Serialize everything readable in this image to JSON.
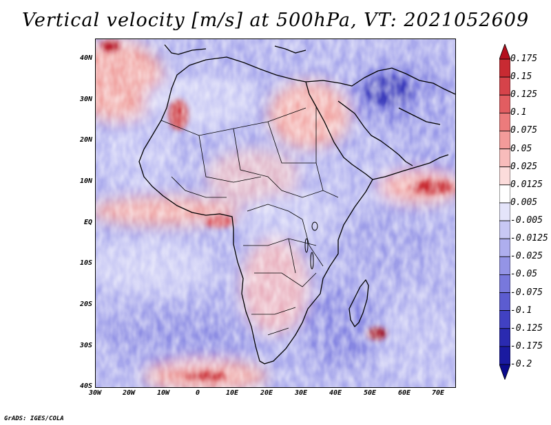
{
  "title": "Vertical velocity [m/s] at 500hPa, VT: 2021052609",
  "lat_labels": [
    "40N",
    "30N",
    "20N",
    "10N",
    "EQ",
    "10S",
    "20S",
    "30S",
    "40S"
  ],
  "lon_labels": [
    "30W",
    "20W",
    "10W",
    "0",
    "10E",
    "20E",
    "30E",
    "40E",
    "50E",
    "60E",
    "70E"
  ],
  "colorbar": {
    "levels": [
      "0.175",
      "0.15",
      "0.125",
      "0.1",
      "0.075",
      "0.05",
      "0.025",
      "0.0125",
      "0.005",
      "-0.005",
      "-0.0125",
      "-0.025",
      "-0.05",
      "-0.075",
      "-0.1",
      "-0.125",
      "-0.175",
      "-0.2"
    ],
    "colors": [
      "#b40f1e",
      "#c82a32",
      "#d6434a",
      "#e25d61",
      "#ec7b7c",
      "#f39b9a",
      "#f8bcbb",
      "#fcdcdb",
      "#ffffff",
      "#e4e4fa",
      "#c8c8f4",
      "#aeaeee",
      "#9494e6",
      "#7878dc",
      "#5c5cd0",
      "#4141c2",
      "#2a2ab0",
      "#1a1aa0",
      "#0b0b8c"
    ]
  },
  "credit": "GrADS: IGES/COLA"
}
